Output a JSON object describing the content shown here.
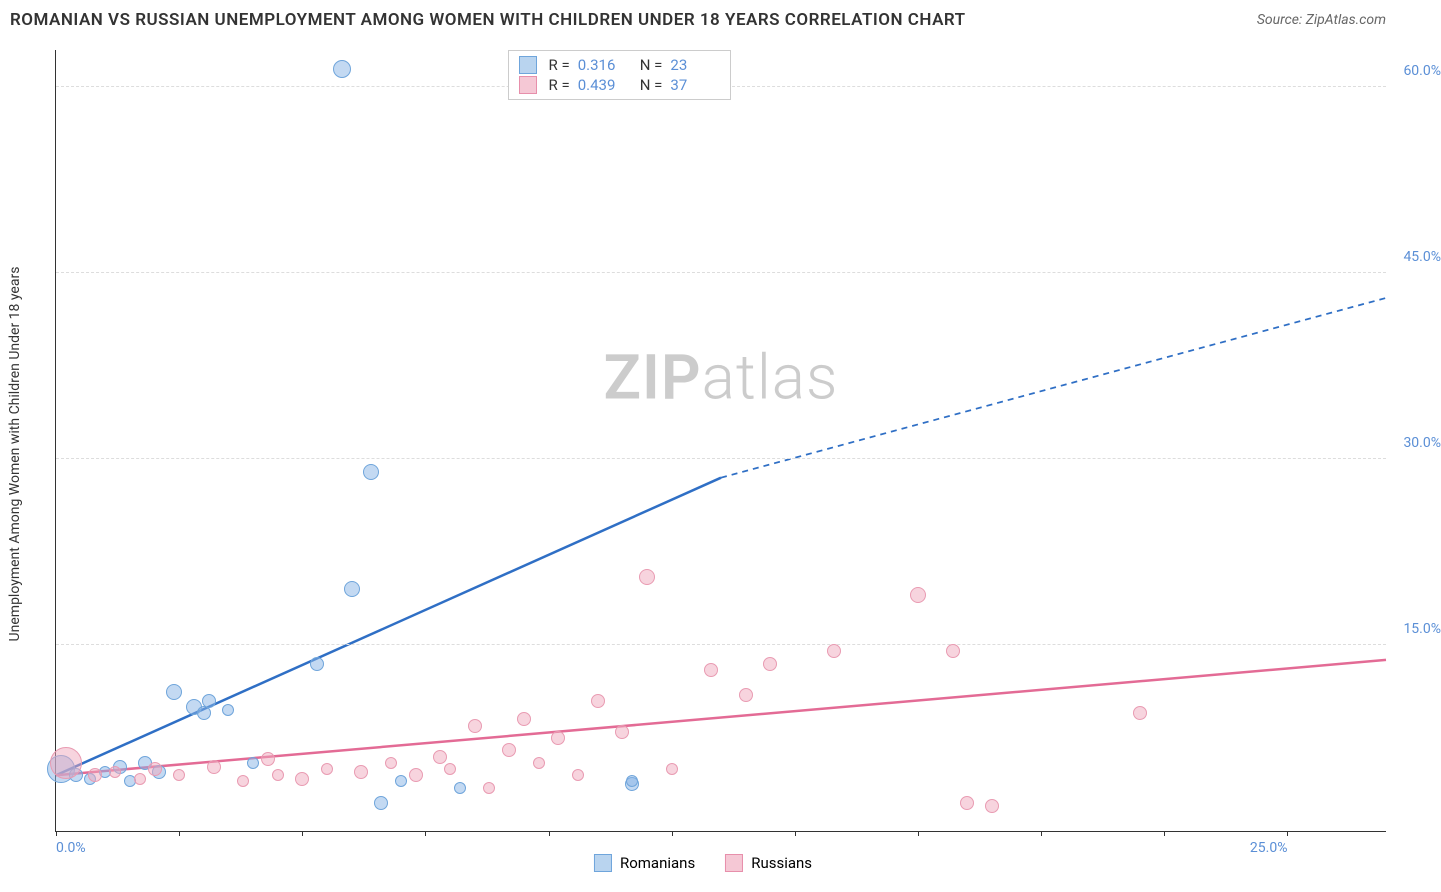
{
  "title": "ROMANIAN VS RUSSIAN UNEMPLOYMENT AMONG WOMEN WITH CHILDREN UNDER 18 YEARS CORRELATION CHART",
  "source": "Source: ZipAtlas.com",
  "watermark_bold": "ZIP",
  "watermark_light": "atlas",
  "y_axis_label": "Unemployment Among Women with Children Under 18 years",
  "chart": {
    "type": "scatter",
    "background_color": "#ffffff",
    "grid_color": "#dddddd",
    "axis_color": "#333333",
    "xlim": [
      0,
      27
    ],
    "ylim": [
      0,
      63
    ],
    "x_ticks": [
      0,
      2.5,
      5,
      7.5,
      10,
      12.5,
      15,
      17.5,
      20,
      22.5,
      25
    ],
    "x_tick_labels": {
      "0": "0.0%",
      "25": "25.0%"
    },
    "y_gridlines": [
      15,
      30,
      45,
      60
    ],
    "y_tick_labels": {
      "15": "15.0%",
      "30": "30.0%",
      "45": "45.0%",
      "60": "60.0%"
    },
    "tick_label_color": "#5b8fd6",
    "tick_label_fontsize": 14
  },
  "series": [
    {
      "name": "Romanians",
      "color_fill": "rgba(135,180,230,0.5)",
      "color_stroke": "#6fa5db",
      "swatch_fill": "#b9d4ef",
      "swatch_stroke": "#6fa5db",
      "R": "0.316",
      "N": "23",
      "trend": {
        "x1": 0,
        "y1": 4.5,
        "x2": 13.5,
        "y2": 28.5,
        "dash_x2": 27,
        "dash_y2": 43,
        "color": "#2f6fc5",
        "width": 2.5
      },
      "points": [
        {
          "x": 0.1,
          "y": 5.0,
          "r": 14
        },
        {
          "x": 0.4,
          "y": 4.5,
          "r": 7
        },
        {
          "x": 0.7,
          "y": 4.2,
          "r": 6
        },
        {
          "x": 1.0,
          "y": 4.8,
          "r": 6
        },
        {
          "x": 1.3,
          "y": 5.2,
          "r": 7
        },
        {
          "x": 1.5,
          "y": 4.0,
          "r": 6
        },
        {
          "x": 1.8,
          "y": 5.5,
          "r": 7
        },
        {
          "x": 2.1,
          "y": 4.8,
          "r": 7
        },
        {
          "x": 2.4,
          "y": 11.2,
          "r": 8
        },
        {
          "x": 2.8,
          "y": 10.0,
          "r": 8
        },
        {
          "x": 3.0,
          "y": 9.5,
          "r": 7
        },
        {
          "x": 3.1,
          "y": 10.5,
          "r": 7
        },
        {
          "x": 3.5,
          "y": 9.8,
          "r": 6
        },
        {
          "x": 4.0,
          "y": 5.5,
          "r": 6
        },
        {
          "x": 5.3,
          "y": 13.5,
          "r": 7
        },
        {
          "x": 5.8,
          "y": 61.5,
          "r": 9
        },
        {
          "x": 6.0,
          "y": 19.5,
          "r": 8
        },
        {
          "x": 6.4,
          "y": 29.0,
          "r": 8
        },
        {
          "x": 6.6,
          "y": 2.3,
          "r": 7
        },
        {
          "x": 7.0,
          "y": 4.0,
          "r": 6
        },
        {
          "x": 8.2,
          "y": 3.5,
          "r": 6
        },
        {
          "x": 11.7,
          "y": 3.8,
          "r": 7
        },
        {
          "x": 11.7,
          "y": 4.0,
          "r": 6
        }
      ]
    },
    {
      "name": "Russians",
      "color_fill": "rgba(240,170,190,0.5)",
      "color_stroke": "#e99bb2",
      "swatch_fill": "#f5c8d5",
      "swatch_stroke": "#e78fab",
      "R": "0.439",
      "N": "37",
      "trend": {
        "x1": 0,
        "y1": 4.5,
        "x2": 27,
        "y2": 13.8,
        "color": "#e36b95",
        "width": 2.5
      },
      "points": [
        {
          "x": 0.2,
          "y": 5.5,
          "r": 16
        },
        {
          "x": 0.8,
          "y": 4.5,
          "r": 7
        },
        {
          "x": 1.2,
          "y": 4.8,
          "r": 6
        },
        {
          "x": 1.7,
          "y": 4.2,
          "r": 6
        },
        {
          "x": 2.0,
          "y": 5.0,
          "r": 7
        },
        {
          "x": 2.5,
          "y": 4.5,
          "r": 6
        },
        {
          "x": 3.2,
          "y": 5.2,
          "r": 7
        },
        {
          "x": 3.8,
          "y": 4.0,
          "r": 6
        },
        {
          "x": 4.3,
          "y": 5.8,
          "r": 7
        },
        {
          "x": 4.5,
          "y": 4.5,
          "r": 6
        },
        {
          "x": 5.0,
          "y": 4.2,
          "r": 7
        },
        {
          "x": 5.5,
          "y": 5.0,
          "r": 6
        },
        {
          "x": 6.2,
          "y": 4.8,
          "r": 7
        },
        {
          "x": 6.8,
          "y": 5.5,
          "r": 6
        },
        {
          "x": 7.3,
          "y": 4.5,
          "r": 7
        },
        {
          "x": 7.8,
          "y": 6.0,
          "r": 7
        },
        {
          "x": 8.0,
          "y": 5.0,
          "r": 6
        },
        {
          "x": 8.5,
          "y": 8.5,
          "r": 7
        },
        {
          "x": 8.8,
          "y": 3.5,
          "r": 6
        },
        {
          "x": 9.2,
          "y": 6.5,
          "r": 7
        },
        {
          "x": 9.5,
          "y": 9.0,
          "r": 7
        },
        {
          "x": 9.8,
          "y": 5.5,
          "r": 6
        },
        {
          "x": 10.2,
          "y": 7.5,
          "r": 7
        },
        {
          "x": 10.6,
          "y": 4.5,
          "r": 6
        },
        {
          "x": 11.0,
          "y": 10.5,
          "r": 7
        },
        {
          "x": 11.5,
          "y": 8.0,
          "r": 7
        },
        {
          "x": 12.0,
          "y": 20.5,
          "r": 8
        },
        {
          "x": 12.5,
          "y": 5.0,
          "r": 6
        },
        {
          "x": 13.3,
          "y": 13.0,
          "r": 7
        },
        {
          "x": 14.0,
          "y": 11.0,
          "r": 7
        },
        {
          "x": 14.5,
          "y": 13.5,
          "r": 7
        },
        {
          "x": 15.8,
          "y": 14.5,
          "r": 7
        },
        {
          "x": 17.5,
          "y": 19.0,
          "r": 8
        },
        {
          "x": 18.2,
          "y": 14.5,
          "r": 7
        },
        {
          "x": 18.5,
          "y": 2.3,
          "r": 7
        },
        {
          "x": 19.0,
          "y": 2.0,
          "r": 7
        },
        {
          "x": 22.0,
          "y": 9.5,
          "r": 7
        }
      ]
    }
  ],
  "legend_labels": {
    "R": "R",
    "N": "N",
    "eq": "="
  }
}
